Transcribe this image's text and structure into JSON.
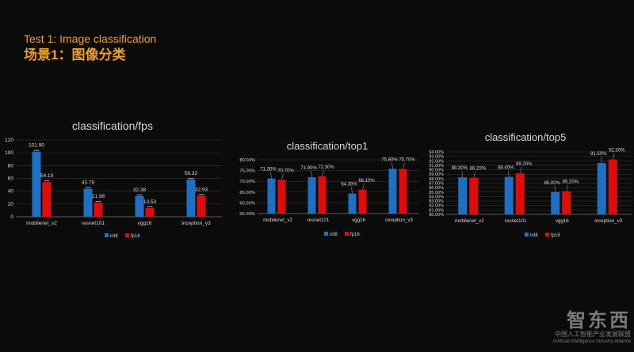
{
  "slide": {
    "title_en": "Test 1: Image classification",
    "title_cn": "场景1：图像分类"
  },
  "watermark": {
    "logo": "智东西",
    "cn": "中国人工智能产业发展联盟",
    "en": "Artificial Intelligence Industry Alliance"
  },
  "colors": {
    "int8": "#1f6fc5",
    "fp16": "#e00b0b",
    "text": "#d8d8d8",
    "grid": "#3a3a3a"
  },
  "chart_data": [
    {
      "id": "fps",
      "type": "bar",
      "title": "classification/fps",
      "categories": [
        "mobilenet_v2",
        "resnet101",
        "vgg16",
        "inception_v3"
      ],
      "series": [
        {
          "name": "int8",
          "values": [
            101.9,
            43.78,
            32.38,
            58.32
          ],
          "labels": [
            "101.90",
            "43.78",
            "32.38",
            "58.32"
          ]
        },
        {
          "name": "fp16",
          "values": [
            54.19,
            21.98,
            13.53,
            32.93
          ],
          "labels": [
            "54.19",
            "21.98",
            "13.53",
            "32.93"
          ]
        }
      ],
      "ylim": [
        0,
        120
      ],
      "yticks": [
        "0",
        "20",
        "40",
        "60",
        "80",
        "100",
        "120"
      ],
      "error_bars": true,
      "legend": "bottom"
    },
    {
      "id": "top1",
      "type": "bar",
      "title": "classification/top1",
      "categories": [
        "mobilenet_v2",
        "resnet101",
        "vgg16",
        "inception_v3"
      ],
      "series": [
        {
          "name": "int8",
          "values": [
            71.3,
            71.9,
            64.3,
            75.8
          ],
          "labels": [
            "71.30%",
            "71.90%",
            "64.30%",
            "75.80%"
          ]
        },
        {
          "name": "fp16",
          "values": [
            70.7,
            72.3,
            66.1,
            75.7
          ],
          "labels": [
            "70.70%",
            "72.30%",
            "66.10%",
            "75.70%"
          ]
        }
      ],
      "ylim": [
        55,
        80
      ],
      "yticks": [
        "55.00%",
        "60.00%",
        "65.00%",
        "70.00%",
        "75.00%",
        "80.00%"
      ],
      "legend": "bottom"
    },
    {
      "id": "top5",
      "type": "bar",
      "title": "classification/top5",
      "categories": [
        "mobilenet_v2",
        "resnet101",
        "vgg16",
        "inception_v3"
      ],
      "series": [
        {
          "name": "int8",
          "values": [
            88.3,
            88.4,
            85.0,
            91.5
          ],
          "labels": [
            "88.30%",
            "88.40%",
            "85.00%",
            "91.50%"
          ]
        },
        {
          "name": "fp16",
          "values": [
            88.2,
            89.2,
            85.2,
            92.3
          ],
          "labels": [
            "88.20%",
            "89.20%",
            "85.20%",
            "92.30%"
          ]
        }
      ],
      "ylim": [
        80,
        94
      ],
      "yticks": [
        "80.00%",
        "81.00%",
        "82.00%",
        "83.00%",
        "84.00%",
        "85.00%",
        "86.00%",
        "87.00%",
        "88.00%",
        "89.00%",
        "90.00%",
        "91.00%",
        "92.00%",
        "93.00%",
        "94.00%"
      ],
      "legend": "bottom"
    }
  ]
}
